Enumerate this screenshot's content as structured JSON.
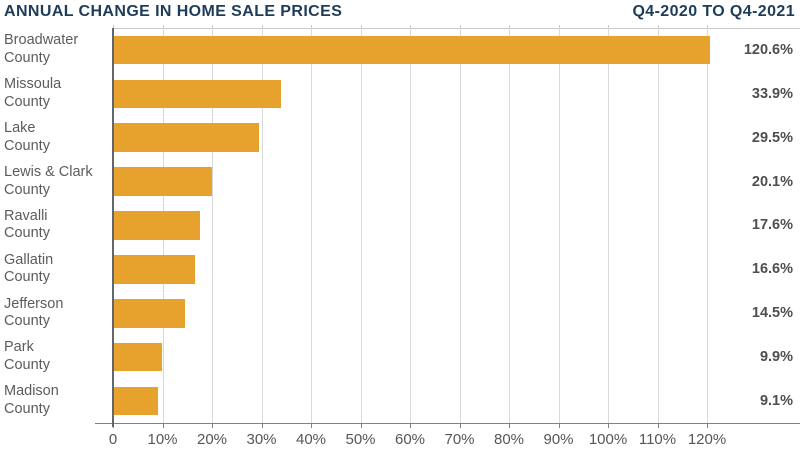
{
  "header": {
    "title": "ANNUAL CHANGE IN HOME SALE PRICES",
    "period": "Q4-2020 TO Q4-2021"
  },
  "colors": {
    "bar": "#E6A22D",
    "title": "#1E3C5A",
    "category_text": "#5B5C5E",
    "value_text": "#4D4E50",
    "tick_text": "#55565A",
    "gridline": "#D8D9DA",
    "plot_top_border": "#C9CACB",
    "axis_line": "#808285",
    "y_axis_line": "#63666A"
  },
  "chart_data": {
    "type": "bar",
    "orientation": "horizontal",
    "title": "ANNUAL CHANGE IN HOME SALE PRICES",
    "subtitle": "Q4-2020 TO Q4-2021",
    "categories": [
      "Broadwater County",
      "Missoula County",
      "Lake County",
      "Lewis & Clark County",
      "Ravalli County",
      "Gallatin County",
      "Jefferson County",
      "Park County",
      "Madison County"
    ],
    "values": [
      120.6,
      33.9,
      29.5,
      20.1,
      17.6,
      16.6,
      14.5,
      9.9,
      9.1
    ],
    "value_labels": [
      "120.6%",
      "33.9%",
      "29.5%",
      "20.1%",
      "17.6%",
      "16.6%",
      "14.5%",
      "9.9%",
      "9.1%"
    ],
    "x_tick_labels": [
      "0",
      "10%",
      "20%",
      "30%",
      "40%",
      "50%",
      "60%",
      "70%",
      "80%",
      "90%",
      "100%",
      "110%",
      "120%"
    ],
    "xlim": [
      0,
      120
    ],
    "xlabel": "",
    "ylabel": "",
    "grid": true,
    "legend": false
  }
}
